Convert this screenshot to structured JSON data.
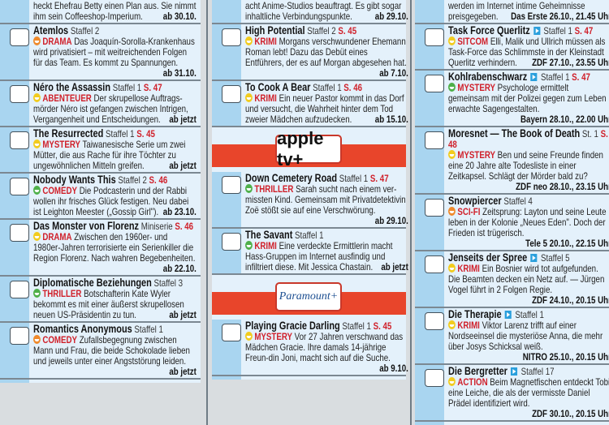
{
  "colors": {
    "accent": "#d0202a",
    "strip": "#a9d5f0",
    "panel": "#e4f1fb",
    "banner": "#e8452b",
    "smiley_yellow": "#f2cc1f",
    "smiley_green": "#4fb04a",
    "smiley_orange": "#ef8a2c"
  },
  "columns": [
    {
      "partial": {
        "desc": "heckt Ehefrau Betty einen Plan aus. Sie nimmt ihm sein Coffeeshop-Imperium.",
        "date": "ab 30.10."
      },
      "entries": [
        {
          "title": "Atemlos",
          "season": "Staffel 2",
          "page": "",
          "mood": "orange",
          "genre": "DRAMA",
          "desc": "Das Joaquín-Sorolla-Krankenhaus wird privatisiert – mit weitreichenden Folgen für das Team. Es kommt zu Spannungen.",
          "date": "ab 31.10."
        },
        {
          "title": "Néro the Assassin",
          "season": "Staffel 1",
          "page": "S. 47",
          "mood": "yellow",
          "genre": "ABENTEUER",
          "desc": "Der skrupellose Auftrags-mörder Néro ist gefangen zwischen Intrigen, Vergangenheit und Entscheidungen.",
          "date": "ab jetzt"
        },
        {
          "title": "The Resurrected",
          "season": "Staffel 1",
          "page": "S. 45",
          "mood": "yellow",
          "genre": "MYSTERY",
          "desc": "Taiwanesische Serie um zwei Mütter, die aus Rache für ihre Töchter zu ungewöhnlichen Mitteln greifen.",
          "date": "ab jetzt"
        },
        {
          "title": "Nobody Wants This",
          "season": "Staffel 2",
          "page": "S. 46",
          "mood": "green",
          "genre": "COMEDY",
          "desc": "Die Podcasterin und der Rabbi wollen ihr frisches Glück festigen. Neu dabei ist Leighton Meester („Gossip Girl\").",
          "date": "ab 23.10."
        },
        {
          "title": "Das Monster von Florenz",
          "season": "Miniserie",
          "page": "S. 46",
          "mood": "yellow",
          "genre": "DRAMA",
          "desc": "Zwischen den 1960er- und 1980er-Jahren terrorisierte ein Serienkiller die Region Florenz. Nach wahren Begebenheiten.",
          "date": "ab 22.10."
        },
        {
          "title": "Diplomatische Beziehungen",
          "season": "Staffel 3",
          "page": "",
          "mood": "green",
          "genre": "THRILLER",
          "desc": "Botschafterin Kate Wyler bekommt es mit einer äußerst skrupellosen neuen US-Präsidentin zu tun.",
          "date": "ab jetzt"
        },
        {
          "title": "Romantics Anonymous",
          "season": "Staffel 1",
          "page": "",
          "mood": "orange",
          "genre": "COMEDY",
          "desc": "Zufallsbegegnung zwischen Mann und Frau, die beide Schokolade lieben und jeweils unter einer Angststörung leiden.",
          "date": "ab jetzt"
        }
      ]
    },
    {
      "partial": {
        "desc": "acht Anime-Studios beauftragt. Es gibt sogar inhaltliche Verbindungspunkte.",
        "date": "ab 29.10."
      },
      "entries": [
        {
          "title": "High Potential",
          "season": "Staffel 2",
          "page": "S. 45",
          "mood": "yellow",
          "genre": "KRIMI",
          "desc": "Morgans verschwundener Ehemann Roman lebt! Dazu das Debüt eines Entführers, der es auf Morgan abgesehen hat.",
          "date": "ab 7.10."
        },
        {
          "title": "To Cook A Bear",
          "season": "Staffel 1",
          "page": "S. 46",
          "mood": "yellow",
          "genre": "KRIMI",
          "desc": "Ein neuer Pastor kommt in das Dorf und versucht, die Wahrheit hinter dem Tod zweier Mädchen aufzudecken.",
          "date": "ab 15.10."
        },
        {
          "banner": "apple tv+"
        },
        {
          "title": "Down Cemetery Road",
          "season": "Staffel 1",
          "page": "S. 47",
          "mood": "green",
          "genre": "THRILLER",
          "desc": "Sarah sucht nach einem ver-missten Kind. Gemeinsam mit Privatdetektivin Zoë stößt sie auf eine Verschwörung.",
          "date": "ab 29.10."
        },
        {
          "title": "The Savant",
          "season": "Staffel 1",
          "page": "",
          "mood": "green",
          "genre": "KRIMI",
          "desc": "Eine verdeckte Ermittlerin macht Hass-Gruppen im Internet ausfindig und infiltriert diese. Mit Jessica Chastain.",
          "date": "ab jetzt"
        },
        {
          "banner": "Paramount+"
        },
        {
          "title": "Playing Gracie Darling",
          "season": "Staffel 1",
          "page": "S. 45",
          "mood": "yellow",
          "genre": "MYSTERY",
          "desc": "Vor 27 Jahren verschwand das Mädchen Gracie. Ihre damals 14-jährige Freun-din Joni, macht sich auf die Suche.",
          "date": "ab 9.10."
        }
      ]
    },
    {
      "partial": {
        "desc": "werden im Internet intime Geheimnisse preisgegeben.",
        "date": "Das Erste 26.10., 21.45 Uhr"
      },
      "entries": [
        {
          "title": "Task Force Querlitz",
          "play": true,
          "season": "Staffel 1",
          "page": "S. 47",
          "mood": "yellow",
          "genre": "SITCOM",
          "desc": "Elli, Malik und Ullrich müssen als Task-Force das Schlimmste in der Kleinstadt Querlitz verhindern.",
          "date": "ZDF 27.10., 23.55 Uhr"
        },
        {
          "title": "Kohlrabenschwarz",
          "play": true,
          "season": "Staffel 1",
          "page": "S. 47",
          "mood": "green",
          "genre": "MYSTERY",
          "desc": "Psychologe ermittelt gemeinsam mit der Polizei gegen zum Leben erwachte Sagengestalten.",
          "date": "Bayern 28.10., 22.00 Uhr"
        },
        {
          "title": "Moresnet — The Book of Death",
          "season": "St. 1",
          "page": "S. 48",
          "mood": "yellow",
          "genre": "MYSTERY",
          "desc": "Ben und seine Freunde finden eine 20 Jahre alte Todesliste in einer Zeitkapsel. Schlägt der Mörder bald zu?",
          "date": "ZDF neo 28.10., 23.15 Uhr"
        },
        {
          "title": "Snowpiercer",
          "season": "Staffel 4",
          "page": "",
          "mood": "orange",
          "genre": "SCI-FI",
          "desc": "Zeitsprung: Layton und seine Leute leben in der Kolonie „Neues Eden\". Doch der Frieden ist trügerisch.",
          "date": "Tele 5 20.10., 22.15 Uhr"
        },
        {
          "title": "Jenseits der Spree",
          "play": true,
          "season": "Staffel 5",
          "page": "",
          "mood": "yellow",
          "genre": "KRIMI",
          "desc": "Ein Bosnier wird tot aufgefunden. Die Beamten decken ein Netz auf. — Jürgen Vogel führt in 2 Folgen Regie.",
          "date": "ZDF 24.10., 20.15 Uhr"
        },
        {
          "title": "Die Therapie",
          "play": true,
          "season": "Staffel 1",
          "page": "",
          "mood": "yellow",
          "genre": "KRIMI",
          "desc": "Viktor Larenz trifft auf einer Nordseeinsel die mysteriöse Anna, die mehr über Josys Schicksal weiß.",
          "date": "NITRO 25.10., 20.15 Uhr"
        },
        {
          "title": "Die Bergretter",
          "play": true,
          "season": "Staffel 17",
          "page": "",
          "mood": "yellow",
          "genre": "ACTION",
          "desc": "Beim Magnetfischen entdeckt Tobi eine Leiche, die als der vermisste Daniel Prädel identifiziert wird.",
          "date": "ZDF 30.10., 20.15 Uhr"
        }
      ]
    }
  ]
}
